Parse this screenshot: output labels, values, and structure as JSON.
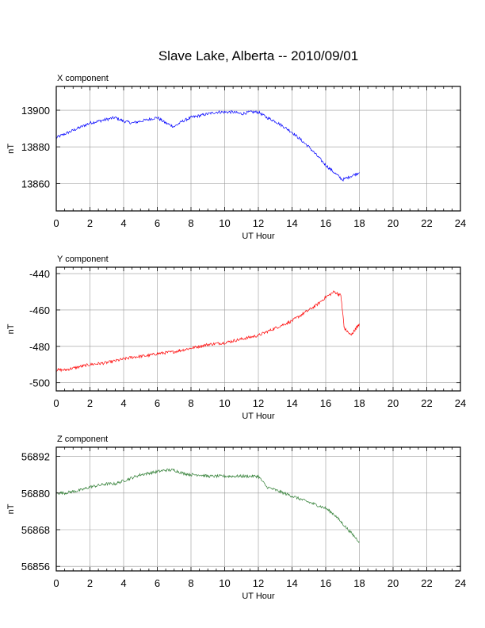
{
  "title": "Slave Lake, Alberta -- 2010/09/01",
  "chart_data": [
    {
      "type": "line",
      "panel_title": "X component",
      "xlabel": "UT Hour",
      "ylabel": "nT",
      "xlim": [
        0,
        24
      ],
      "ylim": [
        13845,
        13913
      ],
      "xticks": [
        0,
        2,
        4,
        6,
        8,
        10,
        12,
        14,
        16,
        18,
        20,
        22,
        24
      ],
      "yticks": [
        13860,
        13880,
        13900
      ],
      "grid": true,
      "color": "#0000ff",
      "series": [
        {
          "x": [
            0,
            0.5,
            1,
            1.5,
            2,
            2.5,
            3,
            3.5,
            4,
            4.5,
            5,
            5.5,
            6,
            6.5,
            7,
            7.5,
            8,
            8.5,
            9,
            9.5,
            10,
            10.5,
            11,
            11.5,
            12,
            12.5,
            13,
            13.5,
            14,
            14.5,
            15,
            15.5,
            16,
            16.5,
            17,
            17.5,
            18
          ],
          "values": [
            13885,
            13887,
            13889,
            13891,
            13893,
            13894,
            13895,
            13896,
            13894,
            13893,
            13894,
            13895,
            13896,
            13893,
            13891,
            13894,
            13896,
            13897,
            13898,
            13899,
            13899,
            13899,
            13898,
            13899,
            13899,
            13896,
            13894,
            13891,
            13888,
            13884,
            13880,
            13875,
            13870,
            13866,
            13862,
            13864,
            13866
          ]
        }
      ]
    },
    {
      "type": "line",
      "panel_title": "Y component",
      "xlabel": "UT Hour",
      "ylabel": "nT",
      "xlim": [
        0,
        24
      ],
      "ylim": [
        -504.5,
        -436.5
      ],
      "xticks": [
        0,
        2,
        4,
        6,
        8,
        10,
        12,
        14,
        16,
        18,
        20,
        22,
        24
      ],
      "yticks": [
        -500,
        -480,
        -460,
        -440
      ],
      "grid": true,
      "color": "#ff0000",
      "series": [
        {
          "x": [
            0,
            0.5,
            1,
            1.5,
            2,
            2.5,
            3,
            3.5,
            4,
            4.5,
            5,
            5.5,
            6,
            6.5,
            7,
            7.5,
            8,
            8.5,
            9,
            9.5,
            10,
            10.5,
            11,
            11.5,
            12,
            12.5,
            13,
            13.5,
            14,
            14.5,
            15,
            15.5,
            16,
            16.5,
            16.9,
            17.1,
            17.5,
            17.8,
            18
          ],
          "values": [
            -493,
            -493,
            -492,
            -491,
            -490,
            -489.5,
            -489,
            -488,
            -487,
            -486,
            -485.5,
            -485,
            -484,
            -483.5,
            -483,
            -482,
            -481,
            -480,
            -479,
            -478.5,
            -478,
            -477,
            -476,
            -475,
            -474,
            -472,
            -470,
            -468,
            -466,
            -463,
            -460,
            -457,
            -453,
            -450,
            -452,
            -470,
            -474,
            -470,
            -468
          ]
        }
      ]
    },
    {
      "type": "line",
      "panel_title": "Z component",
      "xlabel": "UT Hour",
      "ylabel": "nT",
      "xlim": [
        0,
        24
      ],
      "ylim": [
        56854.5,
        56895
      ],
      "xticks": [
        0,
        2,
        4,
        6,
        8,
        10,
        12,
        14,
        16,
        18,
        20,
        22,
        24
      ],
      "yticks": [
        56856,
        56868,
        56880,
        56892
      ],
      "grid": true,
      "color": "#2e7d32",
      "series": [
        {
          "x": [
            0,
            0.5,
            1,
            1.5,
            2,
            2.5,
            3,
            3.5,
            4,
            4.5,
            5,
            5.5,
            6,
            6.5,
            7,
            7.5,
            8,
            8.5,
            9,
            9.5,
            10,
            10.5,
            11,
            11.5,
            12,
            12.5,
            13,
            13.5,
            14,
            14.5,
            15,
            15.5,
            16,
            16.5,
            17,
            17.5,
            18
          ],
          "values": [
            56880,
            56880,
            56880.5,
            56881,
            56882,
            56882.5,
            56883,
            56883,
            56884,
            56885,
            56886,
            56886.5,
            56887,
            56887.5,
            56887.5,
            56886.5,
            56886,
            56886,
            56885.5,
            56885.5,
            56885.5,
            56885.5,
            56885.5,
            56885.5,
            56885.5,
            56882,
            56881,
            56880,
            56879,
            56878,
            56877,
            56876,
            56875,
            56873,
            56870,
            56867,
            56864
          ]
        }
      ]
    }
  ]
}
